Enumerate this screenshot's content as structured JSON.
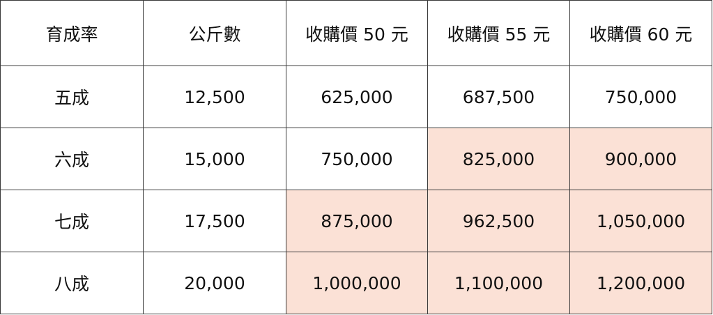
{
  "table": {
    "header": [
      "育成率",
      "公斤數",
      "收購價 50 元",
      "收購價 55 元",
      "收購價 60 元"
    ],
    "rows": [
      [
        "五成",
        "12,500",
        "625,000",
        "687,500",
        "750,000"
      ],
      [
        "六成",
        "15,000",
        "750,000",
        "825,000",
        "900,000"
      ],
      [
        "七成",
        "17,500",
        "875,000",
        "962,500",
        "1,050,000"
      ],
      [
        "八成",
        "20,000",
        "1,000,000",
        "1,100,000",
        "1,200,000"
      ]
    ]
  }
}
